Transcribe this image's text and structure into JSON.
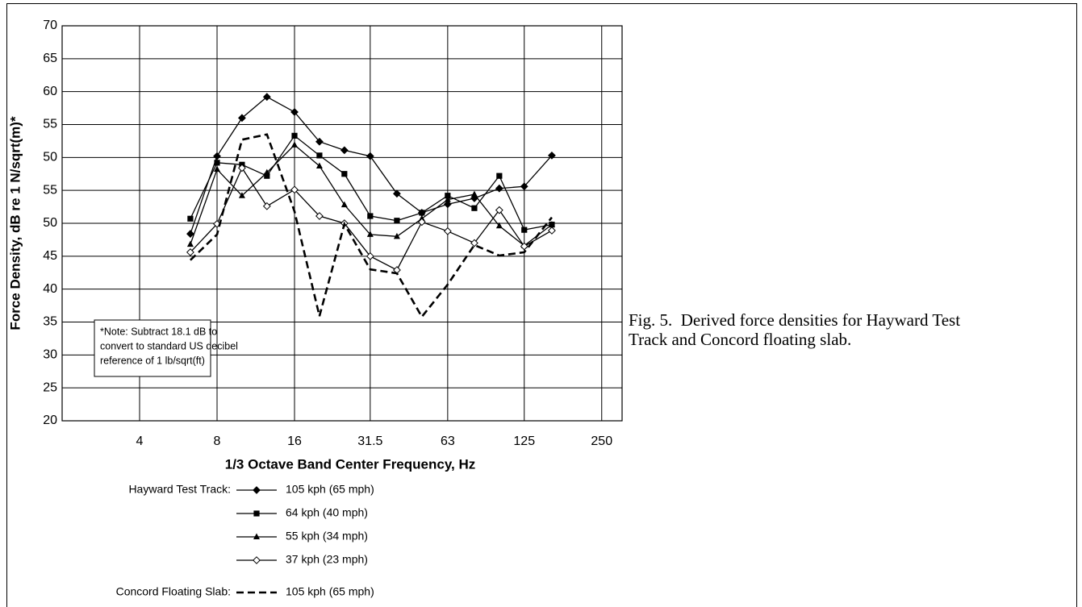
{
  "chart_data": {
    "type": "line",
    "y_label": "Force Density, dB re 1 N/sqrt(m)*",
    "x_label": "1/3 Octave Band Center Frequency, Hz",
    "x": [
      6.3,
      8,
      10,
      12.5,
      16,
      20,
      25,
      31.5,
      40,
      50,
      63,
      80,
      100,
      125,
      160
    ],
    "xlim": [
      2,
      300
    ],
    "xscale": "log",
    "xticks": [
      4,
      8,
      16,
      31.5,
      63,
      125,
      250
    ],
    "ylim": [
      10,
      70
    ],
    "yticks": [
      70,
      65,
      60,
      55,
      50,
      {
        "value": 45,
        "label": "55"
      },
      {
        "value": 40,
        "label": "50"
      },
      {
        "value": 35,
        "label": "45"
      },
      {
        "value": 30,
        "label": "40"
      },
      {
        "value": 25,
        "label": "35"
      },
      {
        "value": 20,
        "label": "30"
      },
      {
        "value": 15,
        "label": "25"
      },
      {
        "value": 10,
        "label": "20"
      }
    ],
    "grid": true,
    "note": [
      "*Note: Subtract 18.1 dB to",
      "convert to standard US decibel",
      "reference of 1 lb/sqrt(ft)"
    ],
    "legend_groups": [
      "Hayward Test Track:",
      "Concord Floating Slab:"
    ],
    "caption": [
      "Fig. 5.  Derived force densities for Hayward Test",
      "Track and Concord floating slab."
    ],
    "series": [
      {
        "name": "105 kph (65 mph)",
        "group": 0,
        "marker": "diamond",
        "color": "#000000",
        "values": [
          38.4,
          50.2,
          56.0,
          59.2,
          56.9,
          52.4,
          51.1,
          50.2,
          44.5,
          41.6,
          42.9,
          43.8,
          45.3,
          45.6,
          50.3
        ]
      },
      {
        "name": "64 kph (40 mph)",
        "group": 0,
        "marker": "square",
        "color": "#000000",
        "values": [
          40.7,
          49.2,
          48.9,
          47.2,
          53.3,
          50.3,
          47.5,
          41.1,
          40.4,
          41.6,
          44.2,
          42.3,
          47.2,
          39.0,
          39.8
        ]
      },
      {
        "name": "55 kph (34 mph)",
        "group": 0,
        "marker": "triangle",
        "color": "#000000",
        "values": [
          36.8,
          48.2,
          44.2,
          47.7,
          51.9,
          48.7,
          42.8,
          38.3,
          38.0,
          40.7,
          43.6,
          44.4,
          39.6,
          36.6,
          39.8
        ]
      },
      {
        "name": "37 kph (23 mph)",
        "group": 0,
        "marker": "open-diamond",
        "color": "#000000",
        "values": [
          35.6,
          39.9,
          48.4,
          42.6,
          45.1,
          41.1,
          40.0,
          35.0,
          32.9,
          40.2,
          38.8,
          37.0,
          42.0,
          36.5,
          38.9
        ]
      },
      {
        "name": "105 kph (65 mph)",
        "group": 1,
        "marker": "none",
        "dashed": true,
        "color": "#000000",
        "values": [
          34.4,
          38.3,
          52.7,
          53.5,
          41.8,
          25.9,
          39.9,
          33.0,
          32.4,
          25.8,
          30.7,
          36.7,
          35.1,
          35.6,
          40.9
        ]
      }
    ]
  }
}
